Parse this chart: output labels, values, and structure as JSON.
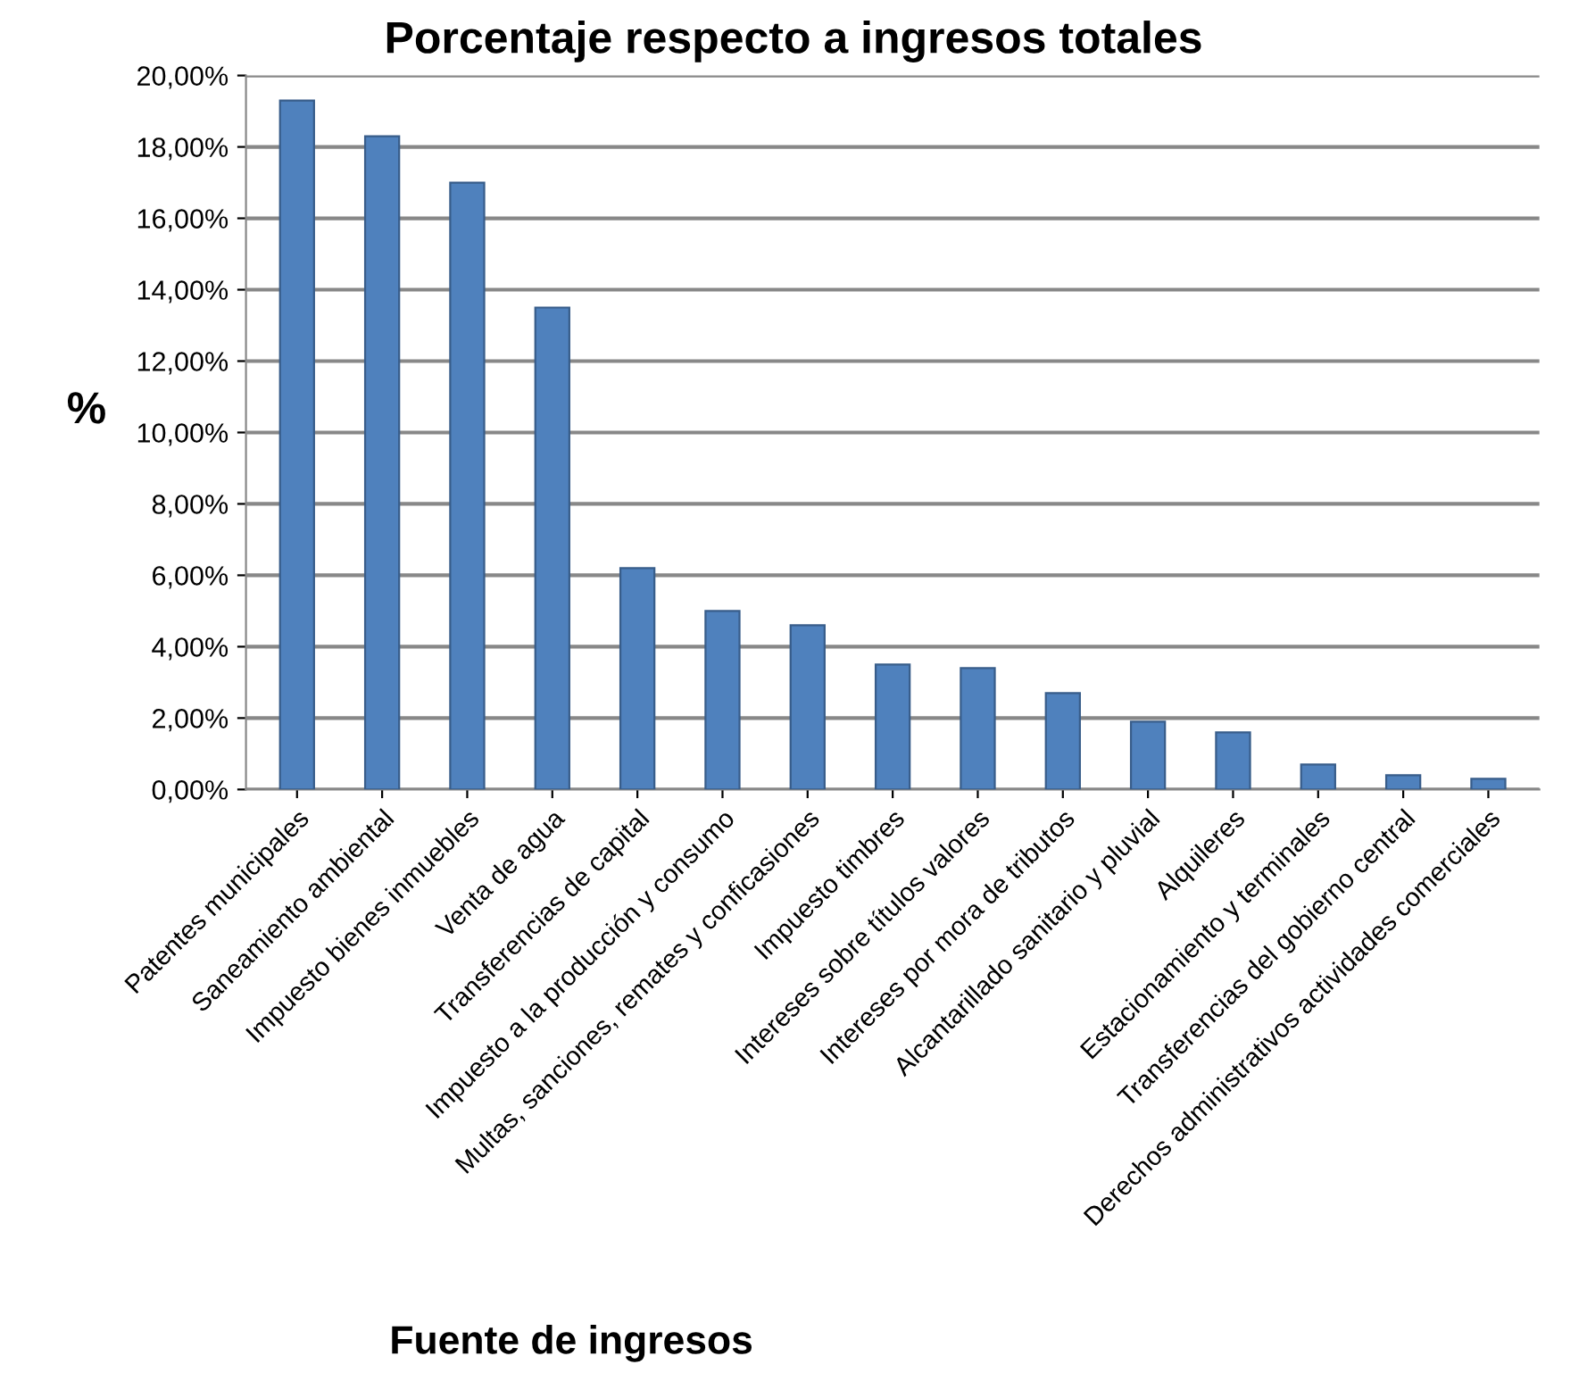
{
  "chart_data": {
    "type": "bar",
    "title": "Porcentaje respecto a ingresos totales",
    "xlabel": "Fuente de ingresos",
    "ylabel": "%",
    "categories": [
      "Patentes municipales",
      "Saneamiento ambiental",
      "Impuesto bienes inmuebles",
      "Venta de agua",
      "Transferencias de capital",
      "Impuesto a la producción y consumo",
      "Multas, sanciones, remates y conficasiones",
      "Impuesto timbres",
      "Intereses sobre títulos valores",
      "Intereses por mora de tributos",
      "Alcantarillado sanitario y pluvial",
      "Alquileres",
      "Estacionamiento y terminales",
      "Transferencias del gobierno central",
      "Derechos administrativos actividades comerciales"
    ],
    "values": [
      19.3,
      18.3,
      17.0,
      13.5,
      6.2,
      5.0,
      4.6,
      3.5,
      3.4,
      2.7,
      1.9,
      1.6,
      0.7,
      0.4,
      0.3
    ],
    "color": "#4f81bd",
    "ylim": [
      0,
      20
    ],
    "yticks": [
      {
        "value": 0,
        "label": "0,00%"
      },
      {
        "value": 2,
        "label": "2,00%"
      },
      {
        "value": 4,
        "label": "4,00%"
      },
      {
        "value": 6,
        "label": "6,00%"
      },
      {
        "value": 8,
        "label": "8,00%"
      },
      {
        "value": 10,
        "label": "10,00%"
      },
      {
        "value": 12,
        "label": "12,00%"
      },
      {
        "value": 14,
        "label": "14,00%"
      },
      {
        "value": 16,
        "label": "16,00%"
      },
      {
        "value": 18,
        "label": "18,00%"
      },
      {
        "value": 20,
        "label": "20,00%"
      }
    ],
    "grid": "y",
    "legend": false
  }
}
